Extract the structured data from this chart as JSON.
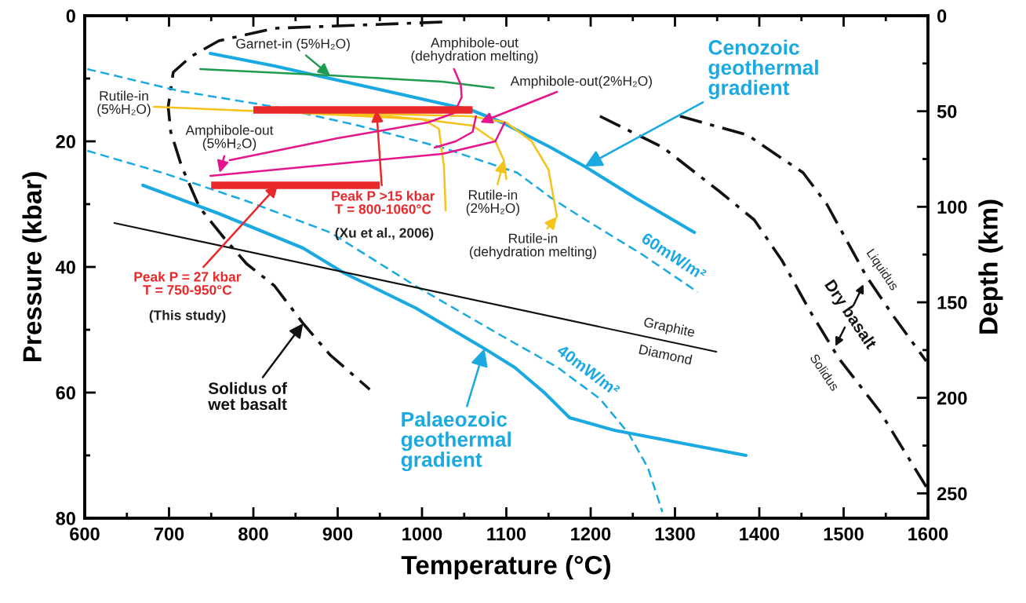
{
  "chart_data": {
    "type": "line",
    "xlabel": "Temperature (°C)",
    "ylabel": "Pressure (kbar)",
    "y2label": "Depth (km)",
    "xlim": [
      600,
      1600
    ],
    "ylim": [
      80,
      0
    ],
    "y2lim": [
      263,
      0
    ],
    "xticks": [
      600,
      {
        "value": 650,
        "label": null
      },
      700,
      {
        "value": 750,
        "label": null
      },
      800,
      {
        "value": 850,
        "label": null
      },
      900,
      {
        "value": 950,
        "label": null
      },
      1000,
      {
        "value": 1050,
        "label": null
      },
      1100,
      {
        "value": 1150,
        "label": null
      },
      1200,
      {
        "value": 1250,
        "label": null
      },
      1300,
      {
        "value": 1350,
        "label": null
      },
      1400,
      {
        "value": 1450,
        "label": null
      },
      1500,
      {
        "value": 1550,
        "label": null
      },
      1600
    ],
    "yticks": [
      0,
      {
        "value": 10,
        "label": null
      },
      20,
      {
        "value": 30,
        "label": null
      },
      40,
      {
        "value": 50,
        "label": null
      },
      60,
      {
        "value": 70,
        "label": null
      },
      80
    ],
    "y2ticks": [
      0,
      {
        "value": 25,
        "label": null
      },
      50,
      {
        "value": 75,
        "label": null
      },
      100,
      {
        "value": 125,
        "label": null
      },
      150,
      {
        "value": 175,
        "label": null
      },
      200,
      {
        "value": 225,
        "label": null
      },
      250
    ],
    "grid": false,
    "legend": false,
    "series": [
      {
        "color": "#111111",
        "line_style": "dashdot",
        "x": [
          1024,
          925,
          825,
          759,
          726,
          705,
          699,
          702,
          715,
          736,
          766,
          792,
          825,
          859,
          891,
          938
        ],
        "values": [
          1,
          1.5,
          2,
          4,
          6.5,
          9,
          14.5,
          18.5,
          24,
          30.5,
          35.5,
          39.5,
          43,
          49,
          54,
          59.5
        ]
      },
      {
        "color": "#111111",
        "line_style": "dashdot",
        "x": [
          1211,
          1286,
          1353,
          1394,
          1427,
          1460,
          1494,
          1543,
          1598
        ],
        "values": [
          16,
          21,
          28,
          32.5,
          39,
          47,
          54.5,
          63,
          75
        ]
      },
      {
        "color": "#111111",
        "line_style": "dashdot",
        "x": [
          1306,
          1386,
          1452,
          1480,
          1527,
          1560,
          1598
        ],
        "values": [
          16,
          19,
          25,
          30,
          41.5,
          48,
          55
        ]
      },
      {
        "color": "#1aa9e1",
        "line_style": "solid",
        "x": [
          749,
          825,
          891,
          958,
          1024,
          1058,
          1095,
          1153,
          1193,
          1253,
          1323
        ],
        "values": [
          6,
          8,
          10,
          12,
          14,
          15,
          17,
          21,
          24,
          29,
          34.5
        ]
      },
      {
        "color": "#1aa9e1",
        "line_style": "dashed",
        "x": [
          603,
          713,
          825,
          925,
          1024,
          1113,
          1153,
          1194,
          1261,
          1327
        ],
        "values": [
          8.5,
          12,
          14.5,
          17.5,
          21,
          25,
          29,
          32.5,
          38,
          44
        ]
      },
      {
        "color": "#1aa9e1",
        "line_style": "dashed",
        "x": [
          603,
          692,
          792,
          891,
          992,
          1095,
          1161,
          1211,
          1245,
          1268,
          1285
        ],
        "values": [
          21.5,
          25,
          29.5,
          34.5,
          43,
          51,
          56,
          61,
          66.5,
          72,
          79
        ]
      },
      {
        "color": "#1aa9e1",
        "line_style": "solid",
        "x": [
          669,
          759,
          859,
          908,
          992,
          1074,
          1110,
          1145,
          1175,
          1228,
          1384
        ],
        "values": [
          27,
          31.5,
          37,
          41,
          46.5,
          53,
          56,
          60,
          64,
          66,
          70
        ]
      },
      {
        "color": "#111111",
        "line_style": "solid",
        "x": [
          635,
          1349
        ],
        "values": [
          33,
          53.5
        ]
      },
      {
        "color": "#1f9b4f",
        "line_style": "solid",
        "x": [
          737,
          891,
          1024,
          1085
        ],
        "values": [
          8.5,
          9.5,
          10.5,
          11.5
        ]
      },
      {
        "color": "#f6c21c",
        "line_style": "solid",
        "x": [
          682,
          859,
          960,
          1001,
          1020,
          1026,
          1028
        ],
        "values": [
          14.5,
          15.5,
          16,
          16.5,
          18,
          24,
          31
        ]
      },
      {
        "color": "#f6c21c",
        "line_style": "solid",
        "x": [
          859,
          1000,
          1060,
          1087,
          1097,
          1100
        ],
        "values": [
          15.5,
          16.5,
          17.5,
          20,
          23,
          26
        ]
      },
      {
        "color": "#f6c21c",
        "line_style": "solid",
        "x": [
          900,
          1058,
          1100,
          1130,
          1150,
          1160
        ],
        "values": [
          15.5,
          16,
          17,
          20,
          24.5,
          32
        ]
      },
      {
        "color": "#e5168c",
        "line_style": "solid",
        "x": [
          1038,
          1046,
          1047,
          1038,
          1007,
          900,
          772
        ],
        "values": [
          8.5,
          11,
          13,
          15.5,
          17,
          19.5,
          23
        ]
      },
      {
        "color": "#e5168c",
        "line_style": "solid",
        "x": [
          1064,
          1060,
          1040,
          1015
        ],
        "values": [
          16,
          18.5,
          20,
          21
        ]
      },
      {
        "color": "#e5168c",
        "line_style": "solid",
        "x": [
          1098,
          1087,
          1024,
          749
        ],
        "values": [
          17,
          20,
          22,
          25.5
        ]
      },
      {
        "color": "#e9282a",
        "line_style": "solid",
        "x": [
          800,
          1060
        ],
        "values": [
          15,
          15
        ]
      },
      {
        "color": "#e9282a",
        "line_style": "solid",
        "x": [
          750,
          950
        ],
        "values": [
          27,
          27
        ]
      }
    ],
    "annotations": [
      {
        "text": "Garnet-in (5%H₂O)",
        "x": 891,
        "y": 9.5
      },
      "Amphibole-out\n(dehydration melting)",
      {
        "text": "Amphibole-out(2%H₂O)",
        "x": 1069,
        "y": 17
      },
      "Rutile-in\n(5%H₂O)",
      {
        "text": "Amphibole-out\n(5%H₂O)",
        "x": 760,
        "y": 25
      },
      {
        "text": "Peak P >15 kbar\nT = 800-1060°C",
        "x": 946,
        "y": 15
      },
      "(Xu et al., 2006)",
      {
        "text": "Peak P = 27 kbar\nT = 750-950°C",
        "x": 829,
        "y": 27
      },
      "(This study)",
      {
        "text": "Solidus of\nwet basalt",
        "x": 859,
        "y": 49
      },
      {
        "text": "Palaeozoic\ngeothermal\ngradient",
        "x": 1074,
        "y": 53
      },
      {
        "text": "Cenozoic\ngeothermal\ngradient",
        "x": 1193,
        "y": 24
      },
      {
        "text": "Rutile-in\n(2%H₂O)",
        "x": 1097,
        "y": 23
      },
      {
        "text": "Rutile-in\n(dehydration melting)",
        "x": 1160,
        "y": 32
      },
      "60mW/m²",
      "40mW/m²",
      "Graphite",
      "Diamond",
      "Liquidus",
      "Dry basalt",
      "Solidus"
    ]
  }
}
